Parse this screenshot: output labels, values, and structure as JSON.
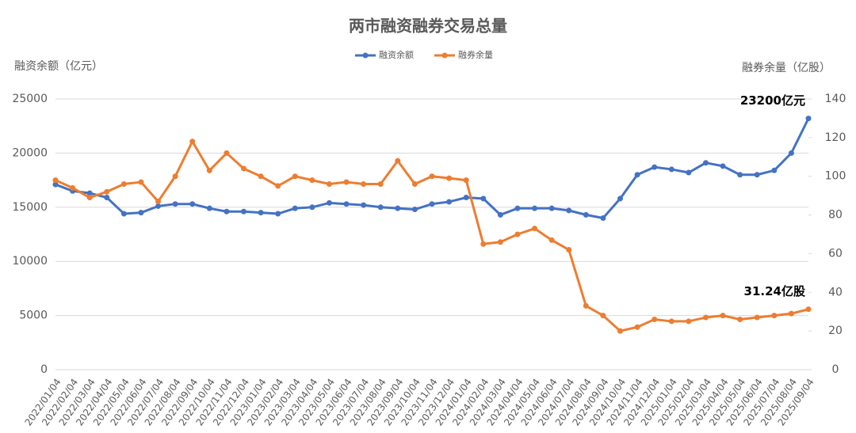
{
  "chart_data": {
    "type": "line",
    "title": "两市融资融券交易总量",
    "y_label": "融资余额（亿元）",
    "y2_label": "融券余量（亿股）",
    "categories": [
      "2022/01/04",
      "2022/02/04",
      "2022/03/04",
      "2022/04/04",
      "2022/05/04",
      "2022/06/04",
      "2022/07/04",
      "2022/08/04",
      "2022/09/04",
      "2022/10/04",
      "2022/11/04",
      "2022/12/04",
      "2023/01/04",
      "2023/02/04",
      "2023/03/04",
      "2023/04/04",
      "2023/05/04",
      "2023/06/04",
      "2023/07/04",
      "2023/08/04",
      "2023/09/04",
      "2023/10/04",
      "2023/11/04",
      "2023/12/04",
      "2024/01/04",
      "2024/02/04",
      "2024/03/04",
      "2024/04/04",
      "2024/05/04",
      "2024/06/04",
      "2024/07/04",
      "2024/08/04",
      "2024/09/04",
      "2024/10/04",
      "2024/11/04",
      "2024/12/04",
      "2025/01/04",
      "2025/02/04",
      "2025/03/04",
      "2025/04/04",
      "2025/05/04",
      "2025/06/04",
      "2025/07/04",
      "2025/08/04",
      "2025/09/04"
    ],
    "series": [
      {
        "name": "融资余额",
        "color": "#4472c4",
        "axis": "y",
        "values": [
          17100,
          16500,
          16300,
          15900,
          14400,
          14500,
          15100,
          15300,
          15300,
          14900,
          14600,
          14600,
          14500,
          14400,
          14900,
          15000,
          15400,
          15300,
          15200,
          15000,
          14900,
          14800,
          15300,
          15500,
          15900,
          15800,
          14300,
          14900,
          14900,
          14900,
          14700,
          14300,
          14000,
          15800,
          18000,
          18700,
          18500,
          18200,
          19100,
          18800,
          18000,
          18000,
          18400,
          20000,
          23200
        ],
        "value_labels": [
          null,
          null,
          null,
          null,
          null,
          null,
          null,
          null,
          null,
          null,
          null,
          null,
          null,
          null,
          null,
          null,
          null,
          null,
          null,
          null,
          null,
          null,
          null,
          null,
          null,
          null,
          null,
          null,
          null,
          null,
          null,
          null,
          null,
          null,
          null,
          null,
          null,
          null,
          null,
          null,
          null,
          null,
          null,
          null,
          "23200亿元"
        ]
      },
      {
        "name": "融券余量",
        "color": "#ed7d31",
        "axis": "y2",
        "values": [
          98,
          94,
          89,
          92,
          96,
          97,
          87,
          100,
          118,
          103,
          112,
          104,
          100,
          95,
          100,
          98,
          96,
          97,
          96,
          96,
          108,
          96,
          100,
          99,
          98,
          65,
          66,
          70,
          73,
          67,
          62,
          33,
          28,
          20,
          22,
          26,
          25,
          25,
          27,
          28,
          26,
          27,
          28,
          29,
          31.24
        ],
        "value_labels": [
          null,
          null,
          null,
          null,
          null,
          null,
          null,
          null,
          null,
          null,
          null,
          null,
          null,
          null,
          null,
          null,
          null,
          null,
          null,
          null,
          null,
          null,
          null,
          null,
          null,
          null,
          null,
          null,
          null,
          null,
          null,
          null,
          null,
          null,
          null,
          null,
          null,
          null,
          null,
          null,
          null,
          null,
          null,
          null,
          "31.24亿股"
        ]
      }
    ],
    "ylim": [
      0,
      25000
    ],
    "yticks": [
      0,
      5000,
      10000,
      15000,
      20000,
      25000
    ],
    "y2lim": [
      0,
      140
    ],
    "y2ticks": [
      0,
      20,
      40,
      60,
      80,
      100,
      120,
      140
    ],
    "grid": true,
    "legend": "top"
  }
}
